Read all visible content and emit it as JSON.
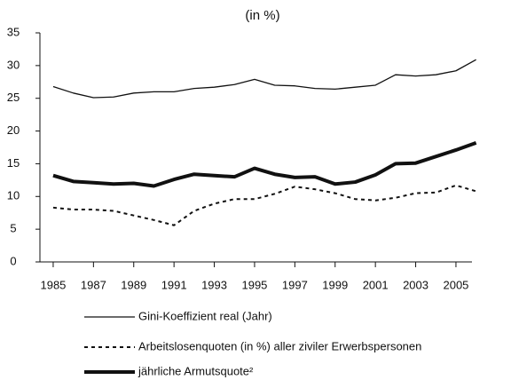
{
  "chart_data": {
    "type": "line",
    "title": "(in %)",
    "x": [
      1985,
      1986,
      1987,
      1988,
      1989,
      1990,
      1991,
      1992,
      1993,
      1994,
      1995,
      1996,
      1997,
      1998,
      1999,
      2000,
      2001,
      2002,
      2003,
      2004,
      2005,
      2006
    ],
    "series": [
      {
        "name": "Gini-Koeffizient real (Jahr)",
        "color": "#111111",
        "style": "solid",
        "width": "thin",
        "values": [
          26.8,
          25.8,
          25.1,
          25.2,
          25.8,
          26.0,
          26.0,
          26.5,
          26.7,
          27.1,
          27.9,
          27.0,
          26.9,
          26.5,
          26.4,
          26.7,
          27.0,
          28.6,
          28.4,
          28.6,
          29.2,
          30.9
        ]
      },
      {
        "name": "Arbeitslosenquoten (in %) aller ziviler Erwerbspersonen",
        "color": "#111111",
        "style": "dashed",
        "width": "medium",
        "values": [
          8.3,
          8.0,
          8.0,
          7.8,
          7.1,
          6.4,
          5.6,
          7.8,
          8.9,
          9.6,
          9.6,
          10.4,
          11.5,
          11.1,
          10.5,
          9.6,
          9.4,
          9.8,
          10.5,
          10.6,
          11.7,
          10.8
        ]
      },
      {
        "name": "jährliche Armutsquote²",
        "color": "#111111",
        "style": "solid",
        "width": "thick",
        "values": [
          13.2,
          12.3,
          12.1,
          11.9,
          12.0,
          11.6,
          12.6,
          13.4,
          13.2,
          13.0,
          14.3,
          13.4,
          12.9,
          13.0,
          11.9,
          12.2,
          13.3,
          15.0,
          15.1,
          16.1,
          17.1,
          18.2
        ]
      }
    ],
    "xlim": [
      1984.5,
      2006.5
    ],
    "xticks": [
      1985,
      1987,
      1989,
      1991,
      1993,
      1995,
      1997,
      1999,
      2001,
      2003,
      2005
    ],
    "ylim": [
      0,
      35
    ],
    "yticks": [
      0,
      5,
      10,
      15,
      20,
      25,
      30,
      35
    ],
    "legend": "bottom"
  }
}
